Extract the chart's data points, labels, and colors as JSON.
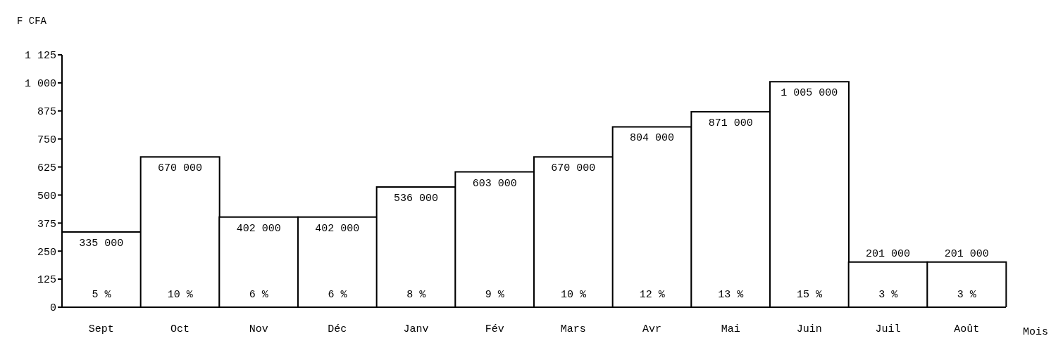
{
  "chart_data": {
    "type": "bar",
    "ylabel": "F CFA",
    "xlabel": "Mois",
    "categories": [
      "Sept",
      "Oct",
      "Nov",
      "Déc",
      "Janv",
      "Fév",
      "Mars",
      "Avr",
      "Mai",
      "Juin",
      "Juil",
      "Août"
    ],
    "values": [
      335,
      670,
      402,
      402,
      536,
      603,
      670,
      804,
      871,
      1005,
      201,
      201
    ],
    "annotations": [
      {
        "text": "335 000",
        "x": "Sept",
        "y": 335
      },
      {
        "text": "670 000",
        "x": "Oct",
        "y": 670
      },
      {
        "text": "402 000",
        "x": "Nov",
        "y": 402
      },
      {
        "text": "402 000",
        "x": "Déc",
        "y": 402
      },
      {
        "text": "536 000",
        "x": "Janv",
        "y": 536
      },
      {
        "text": "603 000",
        "x": "Fév",
        "y": 603
      },
      {
        "text": "670 000",
        "x": "Mars",
        "y": 670
      },
      {
        "text": "804 000",
        "x": "Avr",
        "y": 804
      },
      {
        "text": "871 000",
        "x": "Mai",
        "y": 871
      },
      {
        "text": "1 005 000",
        "x": "Juin",
        "y": 1005
      },
      {
        "text": "201 000",
        "x": "Juil",
        "y": 201
      },
      {
        "text": "201 000",
        "x": "Août",
        "y": 201
      },
      "5 %",
      "10 %",
      "6 %",
      "6 %",
      "8 %",
      "9 %",
      "10 %",
      "12 %",
      "13 %",
      "15 %",
      "3 %",
      "3 %"
    ],
    "color": "#ffffff",
    "ylim": [
      0,
      1125
    ],
    "yticks": [
      0,
      125,
      250,
      375,
      500,
      625,
      750,
      875,
      {
        "value": 1000,
        "label": "1 000"
      },
      {
        "value": 1125,
        "label": "1 125"
      }
    ],
    "grid": false,
    "legend": false
  }
}
